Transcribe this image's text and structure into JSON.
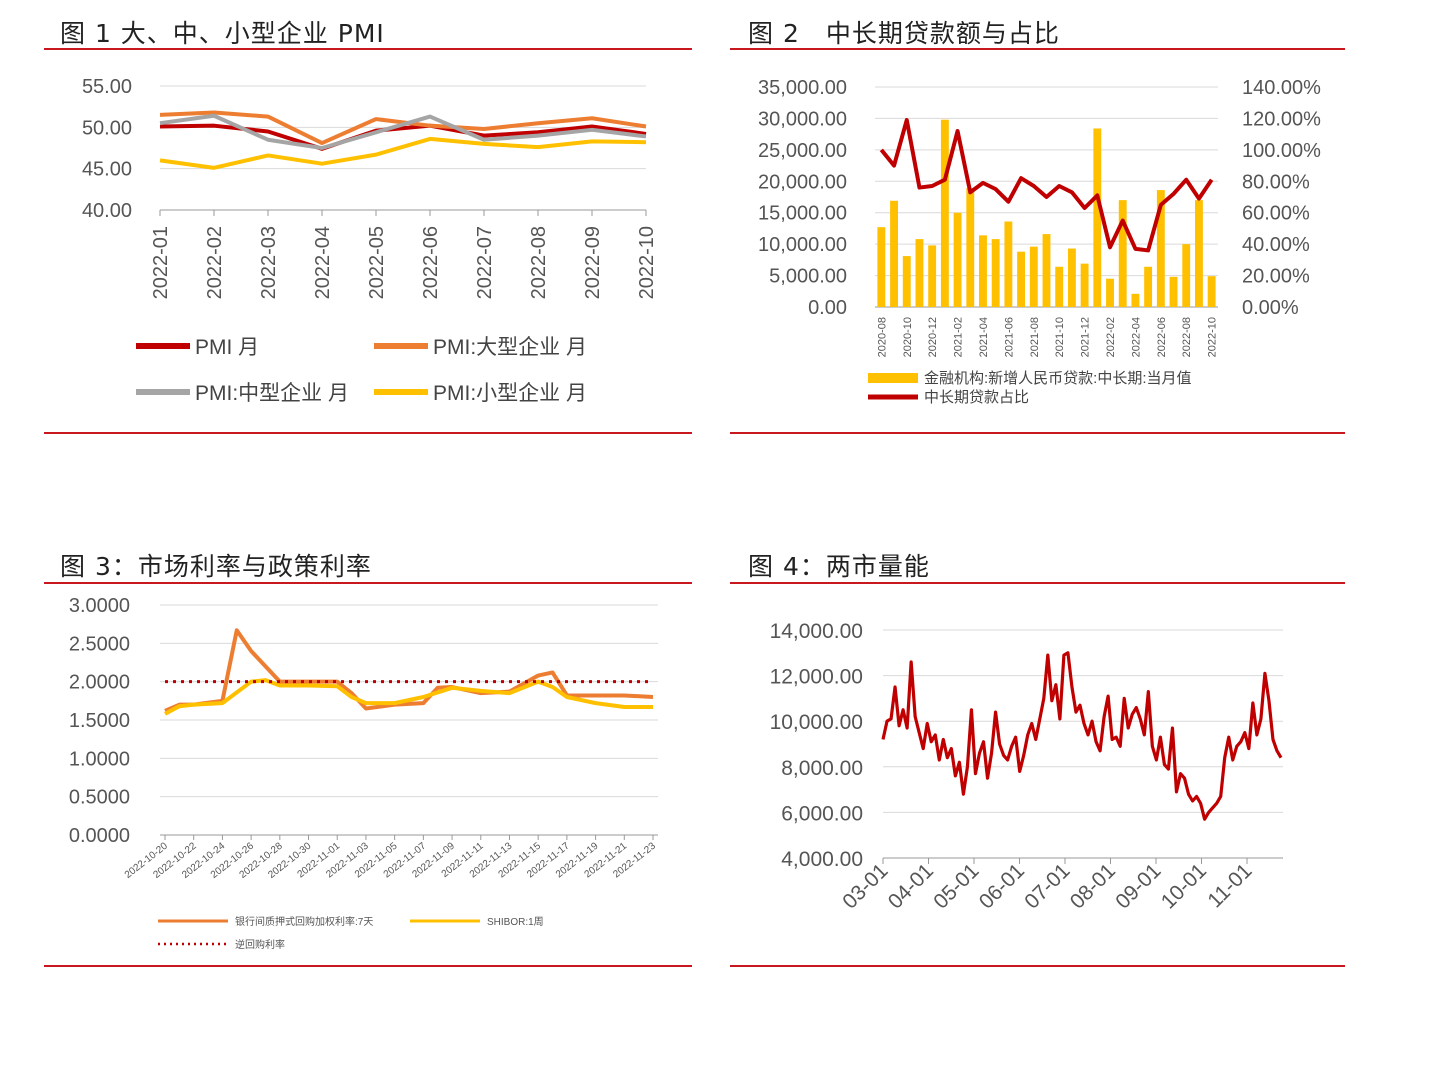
{
  "panels": {
    "p1": {
      "title": "图 1 大、中、小型企业 PMI"
    },
    "p2": {
      "title": "图 2　中长期贷款额与占比"
    },
    "p3": {
      "title": "图 3：市场利率与政策利率"
    },
    "p4": {
      "title": "图 4：两市量能"
    }
  },
  "colors": {
    "rule": "#c8171e",
    "darkred": "#c00000",
    "orange": "#ed7d31",
    "gray": "#a5a5a5",
    "gold": "#ffc000",
    "grid": "#d9d9d9"
  },
  "chart_data": [
    {
      "id": "p1",
      "type": "line",
      "categories": [
        "2022-01",
        "2022-02",
        "2022-03",
        "2022-04",
        "2022-05",
        "2022-06",
        "2022-07",
        "2022-08",
        "2022-09",
        "2022-10"
      ],
      "series": [
        {
          "name": "PMI 月",
          "color": "#c00000",
          "values": [
            50.1,
            50.2,
            49.5,
            47.4,
            49.6,
            50.2,
            49.0,
            49.4,
            50.1,
            49.2
          ]
        },
        {
          "name": "PMI:大型企业 月",
          "color": "#ed7d31",
          "values": [
            51.5,
            51.8,
            51.3,
            48.1,
            51.0,
            50.2,
            49.8,
            50.5,
            51.1,
            50.1
          ]
        },
        {
          "name": "PMI:中型企业 月",
          "color": "#a5a5a5",
          "values": [
            50.5,
            51.4,
            48.5,
            47.5,
            49.4,
            51.3,
            48.5,
            49.0,
            49.7,
            48.9
          ]
        },
        {
          "name": "PMI:小型企业 月",
          "color": "#ffc000",
          "values": [
            46.0,
            45.1,
            46.6,
            45.6,
            46.7,
            48.6,
            48.0,
            47.6,
            48.3,
            48.2
          ]
        }
      ],
      "yticks": [
        "55.00",
        "50.00",
        "45.00",
        "40.00"
      ],
      "ylim": [
        40,
        55
      ]
    },
    {
      "id": "p2",
      "type": "bar",
      "categories": [
        "2020-08",
        "2020-09",
        "2020-10",
        "2020-11",
        "2020-12",
        "2021-01",
        "2021-02",
        "2021-03",
        "2021-04",
        "2021-05",
        "2021-06",
        "2021-07",
        "2021-08",
        "2021-09",
        "2021-10",
        "2021-11",
        "2021-12",
        "2022-01",
        "2022-02",
        "2022-03",
        "2022-04",
        "2022-05",
        "2022-06",
        "2022-07",
        "2022-08",
        "2022-09",
        "2022-10"
      ],
      "category_labels": [
        "2020-08",
        "",
        "2020-10",
        "",
        "2020-12",
        "",
        "2021-02",
        "",
        "2021-04",
        "",
        "2021-06",
        "",
        "2021-08",
        "",
        "2021-10",
        "",
        "2021-12",
        "",
        "2022-02",
        "",
        "2022-04",
        "",
        "2022-06",
        "",
        "2022-08",
        "",
        "2022-10"
      ],
      "series": [
        {
          "name": "金融机构:新增人民币贷款:中长期:当月值",
          "axis": "left",
          "color": "#ffc000",
          "values": [
            12700,
            16900,
            8100,
            10800,
            9800,
            29800,
            15000,
            18900,
            11400,
            10800,
            13600,
            8800,
            9600,
            11600,
            6400,
            9300,
            6900,
            28400,
            4500,
            17000,
            2100,
            6400,
            18600,
            4800,
            10000,
            17000,
            4900
          ]
        },
        {
          "name": "中长期贷款占比",
          "axis": "right",
          "color": "#c00000",
          "values": [
            100,
            90,
            119,
            76,
            77,
            81,
            112,
            73,
            79,
            75,
            67,
            82,
            77,
            70,
            77,
            73,
            63,
            71,
            38,
            55,
            37,
            36,
            65,
            72,
            81,
            69,
            81
          ]
        }
      ],
      "yticks_left": [
        "35,000.00",
        "30,000.00",
        "25,000.00",
        "20,000.00",
        "15,000.00",
        "10,000.00",
        "5,000.00",
        "0.00"
      ],
      "yticks_right": [
        "140.00%",
        "120.00%",
        "100.00%",
        "80.00%",
        "60.00%",
        "40.00%",
        "20.00%",
        "0.00%"
      ],
      "ylim_left": [
        0,
        35000
      ],
      "ylim_right": [
        0,
        140
      ]
    },
    {
      "id": "p3",
      "type": "line",
      "categories": [
        "2022-10-20",
        "2022-10-22",
        "2022-10-24",
        "2022-10-26",
        "2022-10-28",
        "2022-10-30",
        "2022-11-01",
        "2022-11-03",
        "2022-11-05",
        "2022-11-07",
        "2022-11-09",
        "2022-11-11",
        "2022-11-13",
        "2022-11-15",
        "2022-11-17",
        "2022-11-19",
        "2022-11-21",
        "2022-11-23"
      ],
      "series": [
        {
          "name": "银行间质押式回购加权利率:7天",
          "color": "#ed7d31",
          "style": "solid",
          "points": [
            [
              0,
              1.62
            ],
            [
              0.5,
              1.7
            ],
            [
              1,
              1.7
            ],
            [
              2,
              1.75
            ],
            [
              2.5,
              2.67
            ],
            [
              3,
              2.4
            ],
            [
              4,
              2.0
            ],
            [
              5,
              2.0
            ],
            [
              6,
              2.0
            ],
            [
              6.5,
              1.85
            ],
            [
              7,
              1.65
            ],
            [
              8,
              1.7
            ],
            [
              9,
              1.72
            ],
            [
              9.5,
              1.92
            ],
            [
              10,
              1.93
            ],
            [
              11,
              1.85
            ],
            [
              12,
              1.87
            ],
            [
              13,
              2.08
            ],
            [
              13.5,
              2.12
            ],
            [
              14,
              1.82
            ],
            [
              15,
              1.82
            ],
            [
              16,
              1.82
            ],
            [
              17,
              1.8
            ]
          ]
        },
        {
          "name": "SHIBOR:1周",
          "color": "#ffc000",
          "style": "solid",
          "points": [
            [
              0,
              1.58
            ],
            [
              0.5,
              1.68
            ],
            [
              1,
              1.7
            ],
            [
              2,
              1.72
            ],
            [
              3,
              2.0
            ],
            [
              3.5,
              2.02
            ],
            [
              4,
              1.95
            ],
            [
              5,
              1.95
            ],
            [
              6,
              1.94
            ],
            [
              6.5,
              1.8
            ],
            [
              7,
              1.72
            ],
            [
              8,
              1.72
            ],
            [
              9,
              1.8
            ],
            [
              10,
              1.92
            ],
            [
              11,
              1.88
            ],
            [
              12,
              1.85
            ],
            [
              13,
              2.0
            ],
            [
              13.5,
              1.93
            ],
            [
              14,
              1.8
            ],
            [
              15,
              1.72
            ],
            [
              16,
              1.67
            ],
            [
              17,
              1.67
            ]
          ]
        },
        {
          "name": "逆回购利率",
          "color": "#c00000",
          "style": "dotted",
          "points": [
            [
              0,
              2.0
            ],
            [
              17,
              2.0
            ]
          ]
        }
      ],
      "yticks": [
        "3.0000",
        "2.5000",
        "2.0000",
        "1.5000",
        "1.0000",
        "0.5000",
        "0.0000"
      ],
      "ylim": [
        0,
        3
      ]
    },
    {
      "id": "p4",
      "type": "line",
      "x_labels": [
        "03-01",
        "04-01",
        "05-01",
        "06-01",
        "07-01",
        "08-01",
        "09-01",
        "10-01",
        "11-01"
      ],
      "series": [
        {
          "name": "两市成交额",
          "color": "#c00000",
          "values": [
            9200,
            10000,
            10100,
            11500,
            9800,
            10500,
            9700,
            12600,
            10200,
            9500,
            8800,
            9900,
            9100,
            9400,
            8300,
            9200,
            8400,
            8800,
            7600,
            8200,
            6800,
            8000,
            10500,
            7700,
            8600,
            9100,
            7500,
            8600,
            10400,
            9000,
            8500,
            8300,
            8900,
            9300,
            7800,
            8500,
            9400,
            9900,
            9200,
            10100,
            11000,
            12900,
            10900,
            11600,
            10100,
            12900,
            13000,
            11500,
            10400,
            10700,
            9900,
            9400,
            10000,
            9100,
            8700,
            10200,
            11100,
            9200,
            9300,
            8900,
            11000,
            9700,
            10300,
            10600,
            10100,
            9400,
            11300,
            8900,
            8300,
            9300,
            8100,
            7900,
            9700,
            6900,
            7700,
            7500,
            6800,
            6500,
            6700,
            6400,
            5700,
            6000,
            6200,
            6400,
            6700,
            8400,
            9300,
            8300,
            8900,
            9100,
            9500,
            8800,
            10800,
            9400,
            10100,
            12100,
            10900,
            9200,
            8700,
            8400
          ]
        },
        {
          "name": "",
          "color": "#ffffff",
          "values": []
        }
      ],
      "yticks": [
        "14,000.00",
        "12,000.00",
        "10,000.00",
        "8,000.00",
        "6,000.00",
        "4,000.00"
      ],
      "ylim": [
        4000,
        14000
      ]
    }
  ],
  "legends": {
    "p1": [
      {
        "label": "PMI 月",
        "color": "#c00000"
      },
      {
        "label": "PMI:大型企业 月",
        "color": "#ed7d31"
      },
      {
        "label": "PMI:中型企业 月",
        "color": "#a5a5a5"
      },
      {
        "label": "PMI:小型企业 月",
        "color": "#ffc000"
      }
    ],
    "p2": [
      {
        "label": "金融机构:新增人民币贷款:中长期:当月值",
        "color": "#ffc000"
      },
      {
        "label": "中长期贷款占比",
        "color": "#c00000"
      }
    ],
    "p3": [
      {
        "label": "银行间质押式回购加权利率:7天",
        "color": "#ed7d31"
      },
      {
        "label": "SHIBOR:1周",
        "color": "#ffc000"
      },
      {
        "label": "逆回购利率",
        "color": "#c00000"
      }
    ]
  }
}
